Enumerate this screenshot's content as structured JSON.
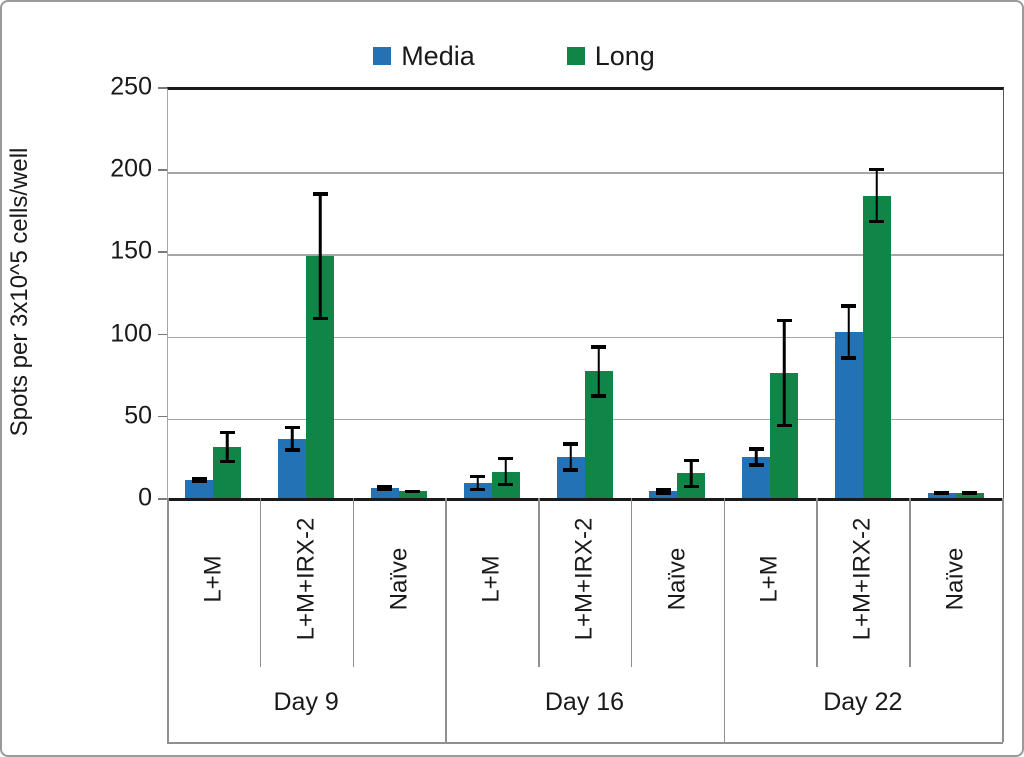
{
  "chart_data": {
    "type": "bar",
    "title": "",
    "ylabel": "Spots per 3x10^5 cells/well",
    "ylim": [
      0,
      250
    ],
    "yticks": [
      0,
      50,
      100,
      150,
      200,
      250
    ],
    "grid": true,
    "legend_position": "top-center",
    "x_categories": [
      "L+M",
      "L+M+IRX-2",
      "Naïve",
      "L+M",
      "L+M+IRX-2",
      "Naïve",
      "L+M",
      "L+M+IRX-2",
      "Naïve"
    ],
    "x_groups": [
      {
        "label": "Day 9",
        "span": 3
      },
      {
        "label": "Day 16",
        "span": 3
      },
      {
        "label": "Day 22",
        "span": 3
      }
    ],
    "series": [
      {
        "name": "Media",
        "color": "#2272b5",
        "values": [
          11,
          36,
          6,
          9,
          25,
          4,
          25,
          101,
          3
        ],
        "errors": [
          2,
          8,
          2,
          5,
          9,
          2,
          6,
          17,
          1
        ]
      },
      {
        "name": "Long",
        "color": "#118447",
        "values": [
          31,
          147,
          4,
          16,
          77,
          15,
          76,
          184,
          3
        ],
        "errors": [
          10,
          39,
          1,
          9,
          16,
          9,
          33,
          17,
          1
        ]
      }
    ],
    "error_bar_color": "#000000",
    "axis_color": "#1a1a1a",
    "grid_color": "#a6a6a6"
  },
  "legend": {
    "items": [
      {
        "label": "Media"
      },
      {
        "label": "Long"
      }
    ]
  }
}
